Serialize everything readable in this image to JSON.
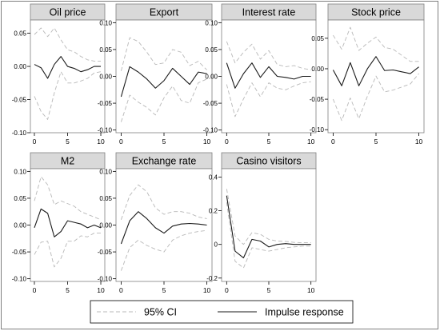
{
  "legend": {
    "ci_label": "95% CI",
    "irf_label": "Impulse response"
  },
  "style": {
    "ci_color": "#b8b8b8",
    "irf_color": "#1a1a1a",
    "header_color": "#d9d9d9",
    "frame_color": "#7f7f7f"
  },
  "chart_data": [
    {
      "type": "line",
      "title": "Oil price",
      "ylim": [
        -0.1,
        0.07
      ],
      "yticks": [
        0.05,
        0.0,
        -0.05,
        -0.1
      ],
      "ytick_labels": [
        "0.05",
        "0.00",
        "-0.05",
        "-0.10"
      ],
      "xticks": [
        0,
        5,
        10
      ],
      "xtick_labels": [
        "0",
        "5",
        "10"
      ],
      "x": [
        0,
        1,
        2,
        3,
        4,
        5,
        6,
        7,
        8,
        9,
        10
      ],
      "series": [
        {
          "role": "upper",
          "values": [
            0.048,
            0.058,
            0.045,
            0.058,
            0.04,
            0.025,
            0.022,
            0.015,
            0.01,
            0.008,
            0.008
          ]
        },
        {
          "role": "irf",
          "values": [
            0.003,
            -0.002,
            -0.018,
            0.003,
            0.015,
            0.0,
            -0.003,
            -0.008,
            -0.005,
            0.0,
            0.0
          ]
        },
        {
          "role": "lower",
          "values": [
            -0.045,
            -0.068,
            -0.08,
            -0.04,
            -0.008,
            -0.025,
            -0.025,
            -0.022,
            -0.018,
            -0.01,
            -0.008
          ]
        }
      ]
    },
    {
      "type": "line",
      "title": "Export",
      "ylim": [
        -0.105,
        0.105
      ],
      "yticks": [
        0.1,
        0.05,
        0.0,
        -0.05,
        -0.1
      ],
      "ytick_labels": [
        "0.10",
        "0.05",
        "0.00",
        "-0.05",
        "-0.10"
      ],
      "xticks": [
        0,
        5,
        10
      ],
      "xtick_labels": [
        "0",
        "5",
        "10"
      ],
      "x": [
        0,
        1,
        2,
        3,
        4,
        5,
        6,
        7,
        8,
        9,
        10
      ],
      "series": [
        {
          "role": "upper",
          "values": [
            0.01,
            0.072,
            0.065,
            0.045,
            0.022,
            0.025,
            0.05,
            0.045,
            0.02,
            0.028,
            0.012
          ]
        },
        {
          "role": "irf",
          "values": [
            -0.038,
            0.018,
            0.008,
            -0.005,
            -0.022,
            -0.008,
            0.015,
            0.0,
            -0.015,
            0.008,
            0.005
          ]
        },
        {
          "role": "lower",
          "values": [
            -0.085,
            -0.035,
            -0.048,
            -0.058,
            -0.072,
            -0.04,
            -0.018,
            -0.045,
            -0.05,
            -0.012,
            -0.005
          ]
        }
      ]
    },
    {
      "type": "line",
      "title": "Interest rate",
      "ylim": [
        -0.105,
        0.105
      ],
      "yticks": [
        0.1,
        0.05,
        0.0,
        -0.05,
        -0.1
      ],
      "ytick_labels": [
        "0.10",
        "0.05",
        "0.00",
        "-0.05",
        "-0.10"
      ],
      "xticks": [
        0,
        5,
        10
      ],
      "xtick_labels": [
        "0",
        "5",
        "10"
      ],
      "x": [
        0,
        1,
        2,
        3,
        4,
        5,
        6,
        7,
        8,
        9,
        10
      ],
      "series": [
        {
          "role": "upper",
          "values": [
            0.065,
            0.025,
            0.045,
            0.06,
            0.032,
            0.048,
            0.022,
            0.018,
            0.02,
            0.015,
            0.012
          ]
        },
        {
          "role": "irf",
          "values": [
            0.025,
            -0.022,
            0.005,
            0.025,
            -0.002,
            0.018,
            0.0,
            -0.002,
            -0.005,
            0.0,
            0.0
          ]
        },
        {
          "role": "lower",
          "values": [
            -0.015,
            -0.075,
            -0.042,
            -0.012,
            -0.038,
            -0.012,
            -0.022,
            -0.025,
            -0.018,
            -0.012,
            -0.01
          ]
        }
      ]
    },
    {
      "type": "line",
      "title": "Stock price",
      "ylim": [
        -0.105,
        0.08
      ],
      "yticks": [
        0.05,
        0.0,
        -0.05,
        -0.1
      ],
      "ytick_labels": [
        "0.05",
        "0.00",
        "-0.05",
        "-0.10"
      ],
      "xticks": [
        0,
        5,
        10
      ],
      "xtick_labels": [
        "0",
        "5",
        "10"
      ],
      "x": [
        0,
        1,
        2,
        3,
        4,
        5,
        6,
        7,
        8,
        9,
        10
      ],
      "series": [
        {
          "role": "upper",
          "values": [
            0.055,
            0.032,
            0.068,
            0.03,
            0.042,
            0.052,
            0.035,
            0.032,
            0.022,
            0.012,
            0.012
          ]
        },
        {
          "role": "irf",
          "values": [
            -0.002,
            -0.028,
            0.01,
            -0.028,
            0.0,
            0.02,
            -0.003,
            -0.002,
            -0.005,
            -0.008,
            0.003
          ]
        },
        {
          "role": "lower",
          "values": [
            -0.05,
            -0.085,
            -0.048,
            -0.082,
            -0.045,
            -0.012,
            -0.038,
            -0.035,
            -0.03,
            -0.025,
            -0.008
          ]
        }
      ]
    },
    {
      "type": "line",
      "title": "M2",
      "ylim": [
        -0.105,
        0.105
      ],
      "yticks": [
        0.1,
        0.05,
        0.0,
        -0.05,
        -0.1
      ],
      "ytick_labels": [
        "0.10",
        "0.05",
        "0.00",
        "-0.05",
        "-0.10"
      ],
      "xticks": [
        0,
        5,
        10
      ],
      "xtick_labels": [
        "0",
        "5",
        "10"
      ],
      "x": [
        0,
        1,
        2,
        3,
        4,
        5,
        6,
        7,
        8,
        9,
        10
      ],
      "series": [
        {
          "role": "upper",
          "values": [
            0.045,
            0.09,
            0.075,
            0.038,
            0.045,
            0.04,
            0.035,
            0.025,
            0.02,
            0.015,
            0.01
          ]
        },
        {
          "role": "irf",
          "values": [
            -0.005,
            0.03,
            0.022,
            -0.022,
            -0.012,
            0.008,
            0.005,
            0.002,
            -0.005,
            0.0,
            -0.005
          ]
        },
        {
          "role": "lower",
          "values": [
            -0.055,
            -0.032,
            -0.03,
            -0.078,
            -0.062,
            -0.03,
            -0.03,
            -0.02,
            -0.022,
            -0.015,
            -0.015
          ]
        }
      ]
    },
    {
      "type": "line",
      "title": "Exchange rate",
      "ylim": [
        -0.105,
        0.105
      ],
      "yticks": [
        0.1,
        0.05,
        0.0,
        -0.05,
        -0.1
      ],
      "ytick_labels": [
        "0.10",
        "0.05",
        "0.00",
        "-0.05",
        "-0.10"
      ],
      "xticks": [
        0,
        5,
        10
      ],
      "xtick_labels": [
        "0",
        "5",
        "10"
      ],
      "x": [
        0,
        1,
        2,
        3,
        4,
        5,
        6,
        7,
        8,
        9,
        10
      ],
      "series": [
        {
          "role": "upper",
          "values": [
            0.01,
            0.055,
            0.075,
            0.062,
            0.032,
            0.02,
            0.025,
            0.025,
            0.022,
            0.015,
            0.012
          ]
        },
        {
          "role": "irf",
          "values": [
            -0.035,
            0.008,
            0.025,
            0.012,
            -0.005,
            -0.015,
            -0.002,
            0.002,
            0.003,
            0.002,
            0.0
          ]
        },
        {
          "role": "lower",
          "values": [
            -0.085,
            -0.042,
            -0.028,
            -0.038,
            -0.045,
            -0.05,
            -0.028,
            -0.02,
            -0.015,
            -0.012,
            -0.01
          ]
        }
      ]
    },
    {
      "type": "line",
      "title": "Casino visitors",
      "ylim": [
        -0.22,
        0.45
      ],
      "yticks": [
        0.4,
        0.2,
        0.0,
        -0.2
      ],
      "ytick_labels": [
        "0.4",
        "0.2",
        "0",
        "-0.2"
      ],
      "xticks": [
        0,
        5,
        10
      ],
      "xtick_labels": [
        "0",
        "5",
        "10"
      ],
      "x": [
        0,
        1,
        2,
        3,
        4,
        5,
        6,
        7,
        8,
        9,
        10
      ],
      "series": [
        {
          "role": "upper",
          "values": [
            0.33,
            0.05,
            0.0,
            0.07,
            0.06,
            0.03,
            0.02,
            0.018,
            0.012,
            0.01,
            0.01
          ]
        },
        {
          "role": "irf",
          "values": [
            0.29,
            -0.04,
            -0.08,
            0.03,
            0.02,
            -0.015,
            0.0,
            0.005,
            0.0,
            0.0,
            0.0
          ]
        },
        {
          "role": "lower",
          "values": [
            0.25,
            -0.1,
            -0.14,
            -0.02,
            -0.03,
            -0.04,
            -0.03,
            -0.02,
            -0.015,
            -0.01,
            -0.01
          ]
        }
      ]
    }
  ]
}
